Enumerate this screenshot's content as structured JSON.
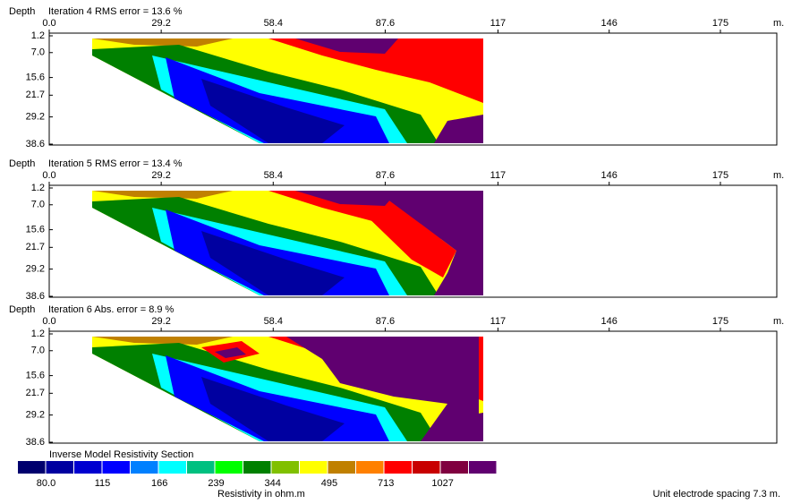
{
  "chart_data": [
    {
      "type": "section",
      "y_label": "Depth",
      "title": "Iteration 4 RMS error = 13.6 %",
      "x_unit": "m.",
      "xlim": [
        0,
        189.7
      ],
      "xticks": [
        {
          "value": 0,
          "label": "0.0"
        },
        29.2,
        58.4,
        87.6,
        117,
        146,
        175
      ],
      "ylim": [
        1.2,
        38.6
      ],
      "yticks": [
        1.2,
        {
          "value": 7,
          "label": "7.0"
        },
        15.6,
        21.7,
        29.2,
        38.6
      ]
    },
    {
      "type": "section",
      "y_label": "Depth",
      "title": "Iteration 5 RMS error = 13.4 %",
      "x_unit": "m.",
      "xlim": [
        0,
        189.7
      ],
      "xticks": [
        {
          "value": 0,
          "label": "0.0"
        },
        29.2,
        58.4,
        87.6,
        117,
        146,
        175
      ],
      "ylim": [
        1.2,
        38.6
      ],
      "yticks": [
        1.2,
        {
          "value": 7,
          "label": "7.0"
        },
        15.6,
        21.7,
        29.2,
        38.6
      ]
    },
    {
      "type": "section",
      "y_label": "Depth",
      "title": "Iteration 6 Abs. error = 8.9 %",
      "x_unit": "m.",
      "xlim": [
        0,
        189.7
      ],
      "xticks": [
        {
          "value": 0,
          "label": "0.0"
        },
        29.2,
        58.4,
        87.6,
        117,
        146,
        175
      ],
      "ylim": [
        1.2,
        38.6
      ],
      "yticks": [
        1.2,
        {
          "value": 7,
          "label": "7.0"
        },
        15.6,
        21.7,
        29.2,
        38.6
      ]
    }
  ],
  "legend": {
    "title": "Inverse Model Resistivity Section",
    "colors": [
      "#00006e",
      "#0000a0",
      "#0000d0",
      "#0000ff",
      "#0080ff",
      "#00ffff",
      "#00c080",
      "#00ff00",
      "#008000",
      "#80c000",
      "#ffff00",
      "#c08000",
      "#ff8000",
      "#ff0000",
      "#c80000",
      "#800040",
      "#600070"
    ],
    "labels": [
      {
        "value": 80,
        "label": "80.0"
      },
      115,
      166,
      239,
      344,
      495,
      713,
      1027
    ],
    "unit_label": "Resistivity in ohm.m"
  },
  "footer": "Unit electrode spacing 7.3 m."
}
